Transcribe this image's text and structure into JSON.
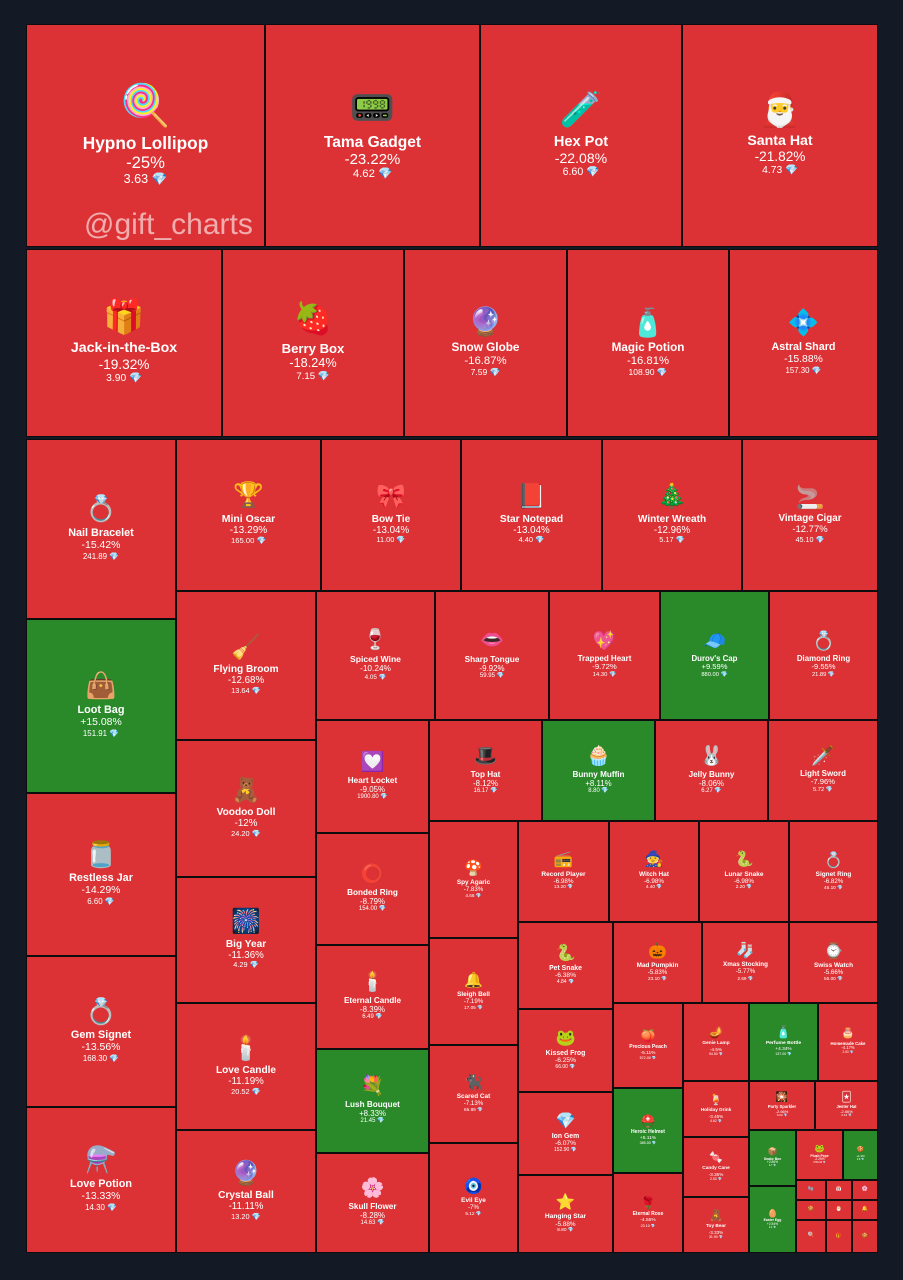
{
  "watermark": "@gift_charts",
  "colors": {
    "negative": "#dd3235",
    "positive": "#2a8a2a",
    "border": "#0d0d10",
    "background": "#131a26"
  },
  "chart_data": {
    "type": "treemap",
    "items": [
      {
        "name": "Hypno Lollipop",
        "change": "-25%",
        "price": "3.63",
        "icon": "🍭"
      },
      {
        "name": "Tama Gadget",
        "change": "-23.22%",
        "price": "4.62",
        "icon": "📟"
      },
      {
        "name": "Hex Pot",
        "change": "-22.08%",
        "price": "6.60",
        "icon": "🧪"
      },
      {
        "name": "Santa Hat",
        "change": "-21.82%",
        "price": "4.73",
        "icon": "🎅"
      },
      {
        "name": "Jack-in-the-Box",
        "change": "-19.32%",
        "price": "3.90",
        "icon": "🎁"
      },
      {
        "name": "Berry Box",
        "change": "-18.24%",
        "price": "7.15",
        "icon": "🍓"
      },
      {
        "name": "Snow Globe",
        "change": "-16.87%",
        "price": "7.59",
        "icon": "🔮"
      },
      {
        "name": "Magic Potion",
        "change": "-16.81%",
        "price": "108.90",
        "icon": "🧴"
      },
      {
        "name": "Astral Shard",
        "change": "-15.88%",
        "price": "157.30",
        "icon": "💠"
      },
      {
        "name": "Nail Bracelet",
        "change": "-15.42%",
        "price": "241.89",
        "icon": "💍"
      },
      {
        "name": "Mini Oscar",
        "change": "-13.29%",
        "price": "165.00",
        "icon": "🏆"
      },
      {
        "name": "Bow Tie",
        "change": "-13.04%",
        "price": "11.00",
        "icon": "🎀"
      },
      {
        "name": "Star Notepad",
        "change": "-13.04%",
        "price": "4.40",
        "icon": "📕"
      },
      {
        "name": "Winter Wreath",
        "change": "-12.96%",
        "price": "5.17",
        "icon": "🎄"
      },
      {
        "name": "Vintage Cigar",
        "change": "-12.77%",
        "price": "45.10",
        "icon": "🚬"
      },
      {
        "name": "Loot Bag",
        "change": "+15.08%",
        "price": "151.91",
        "icon": "👜"
      },
      {
        "name": "Flying Broom",
        "change": "-12.68%",
        "price": "13.64",
        "icon": "🧹"
      },
      {
        "name": "Spiced Wine",
        "change": "-10.24%",
        "price": "4.05",
        "icon": "🍷"
      },
      {
        "name": "Sharp Tongue",
        "change": "-9.92%",
        "price": "59.95",
        "icon": "👄"
      },
      {
        "name": "Trapped Heart",
        "change": "-9.72%",
        "price": "14.30",
        "icon": "💖"
      },
      {
        "name": "Durov's Cap",
        "change": "+9.59%",
        "price": "880.00",
        "icon": "🧢"
      },
      {
        "name": "Diamond Ring",
        "change": "-9.55%",
        "price": "21.89",
        "icon": "💍"
      },
      {
        "name": "Restless Jar",
        "change": "-14.29%",
        "price": "6.60",
        "icon": "🫙"
      },
      {
        "name": "Voodoo Doll",
        "change": "-12%",
        "price": "24.20",
        "icon": "🧸"
      },
      {
        "name": "Heart Locket",
        "change": "-9.05%",
        "price": "1900.80",
        "icon": "💟"
      },
      {
        "name": "Top Hat",
        "change": "-8.12%",
        "price": "16.17",
        "icon": "🎩"
      },
      {
        "name": "Bunny Muffin",
        "change": "+8.11%",
        "price": "8.80",
        "icon": "🧁"
      },
      {
        "name": "Jelly Bunny",
        "change": "-8.06%",
        "price": "6.27",
        "icon": "🐰"
      },
      {
        "name": "Light Sword",
        "change": "-7.96%",
        "price": "5.72",
        "icon": "🗡️"
      },
      {
        "name": "Gem Signet",
        "change": "-13.56%",
        "price": "168.30",
        "icon": "💍"
      },
      {
        "name": "Big Year",
        "change": "-11.36%",
        "price": "4.29",
        "icon": "🎆"
      },
      {
        "name": "Bonded Ring",
        "change": "-8.79%",
        "price": "154.00",
        "icon": "⭕"
      },
      {
        "name": "Spy Agaric",
        "change": "-7.83%",
        "price": "4.66",
        "icon": "🍄"
      },
      {
        "name": "Record Player",
        "change": "-6.98%",
        "price": "13.20",
        "icon": "📻"
      },
      {
        "name": "Witch Hat",
        "change": "-6.98%",
        "price": "4.40",
        "icon": "🧙"
      },
      {
        "name": "Lunar Snake",
        "change": "-6.98%",
        "price": "2.20",
        "icon": "🐍"
      },
      {
        "name": "Signet Ring",
        "change": "-6.82%",
        "price": "45.10",
        "icon": "💍"
      },
      {
        "name": "Love Potion",
        "change": "-13.33%",
        "price": "14.30",
        "icon": "⚗️"
      },
      {
        "name": "Love Candle",
        "change": "-11.19%",
        "price": "20.52",
        "icon": "🕯️"
      },
      {
        "name": "Eternal Candle",
        "change": "-8.39%",
        "price": "6.49",
        "icon": "🕯️"
      },
      {
        "name": "Sleigh Bell",
        "change": "-7.19%",
        "price": "17.05",
        "icon": "🔔"
      },
      {
        "name": "Pet Snake",
        "change": "-6.38%",
        "price": "4.84",
        "icon": "🐍"
      },
      {
        "name": "Mad Pumpkin",
        "change": "-5.83%",
        "price": "23.10",
        "icon": "🎃"
      },
      {
        "name": "Xmas Stocking",
        "change": "-5.77%",
        "price": "2.69",
        "icon": "🧦"
      },
      {
        "name": "Swiss Watch",
        "change": "-5.66%",
        "price": "55.00",
        "icon": "⌚"
      },
      {
        "name": "Crystal Ball",
        "change": "-11.11%",
        "price": "13.20",
        "icon": "🔮"
      },
      {
        "name": "Lush Bouquet",
        "change": "+8.33%",
        "price": "21.45",
        "icon": "💐"
      },
      {
        "name": "Kissed Frog",
        "change": "-6.25%",
        "price": "66.00",
        "icon": "🐸"
      },
      {
        "name": "Precious Peach",
        "change": "-5.11%",
        "price": "572.00",
        "icon": "🍑"
      },
      {
        "name": "Genie Lamp",
        "change": "-4.5%",
        "price": "94.50",
        "icon": "🪔"
      },
      {
        "name": "Perfume Bottle",
        "change": "+4.34%",
        "price": "137.00",
        "icon": "🧴"
      },
      {
        "name": "Homemade Cake",
        "change": "-4.17%",
        "price": "2.53",
        "icon": "🎂"
      },
      {
        "name": "Skull Flower",
        "change": "-8.28%",
        "price": "14.63",
        "icon": "🌸"
      },
      {
        "name": "Scared Cat",
        "change": "-7.13%",
        "price": "65.89",
        "icon": "🐈‍⬛"
      },
      {
        "name": "Ion Gem",
        "change": "-6.07%",
        "price": "152.90",
        "icon": "💎"
      },
      {
        "name": "Heroic Helmet",
        "change": "+5.11%",
        "price": "385.00",
        "icon": "⛑️"
      },
      {
        "name": "Holiday Drink",
        "change": "-3.45%",
        "price": "4.62",
        "icon": "🍹"
      },
      {
        "name": "Party Sparkler",
        "change": "-2.66%",
        "price": "3.00",
        "icon": "🎇"
      },
      {
        "name": "Jester Hat",
        "change": "-2.66%",
        "price": "2.44",
        "icon": "🃏"
      },
      {
        "name": "Evil Eye",
        "change": "-7%",
        "price": "5.12",
        "icon": "🧿"
      },
      {
        "name": "Hanging Star",
        "change": "-5.88%",
        "price": "8.80",
        "icon": "⭐"
      },
      {
        "name": "Eternal Rose",
        "change": "-4.55%",
        "price": "23.10",
        "icon": "🌹"
      },
      {
        "name": "Candy Cane",
        "change": "-3.36%",
        "price": "2.53",
        "icon": "🍬"
      },
      {
        "name": "Toy Bear",
        "change": "-3.33%",
        "price": "31.90",
        "icon": "🧸"
      },
      {
        "name": "Snake Box",
        "change": "+2.86%",
        "price": "2.7",
        "icon": "📦"
      },
      {
        "name": "Easter Egg",
        "change": "+2.54%",
        "price": "2.4",
        "icon": "🥚"
      },
      {
        "name": "Plush Pepe",
        "change": "-2.26%",
        "price": "4730.00",
        "icon": "🐸"
      },
      {
        "name": "Ginger Cookie",
        "change": "+1.3%",
        "price": "2.8",
        "icon": "🍪"
      },
      {
        "name": "Snow Mittens",
        "change": "",
        "price": "",
        "icon": "🧤"
      },
      {
        "name": "Desk Calendar",
        "change": "",
        "price": "",
        "icon": "📅"
      },
      {
        "name": "Sakura Flower",
        "change": "",
        "price": "",
        "icon": "🌸"
      },
      {
        "name": "Cookie Heart",
        "change": "",
        "price": "",
        "icon": "🍪"
      },
      {
        "name": "Santa Cap",
        "change": "",
        "price": "",
        "icon": "🎅"
      },
      {
        "name": "Swiss Bell",
        "change": "",
        "price": "",
        "icon": "🔔"
      },
      {
        "name": "Lol Pop",
        "change": "",
        "price": "",
        "icon": "🍭"
      },
      {
        "name": "Ginger Box",
        "change": "",
        "price": "",
        "icon": "🎁"
      },
      {
        "name": "Hex Cookie",
        "change": "",
        "price": "",
        "icon": "🍪"
      },
      {
        "name": "Spy Mask",
        "change": "",
        "price": "",
        "icon": "🎭"
      }
    ]
  }
}
